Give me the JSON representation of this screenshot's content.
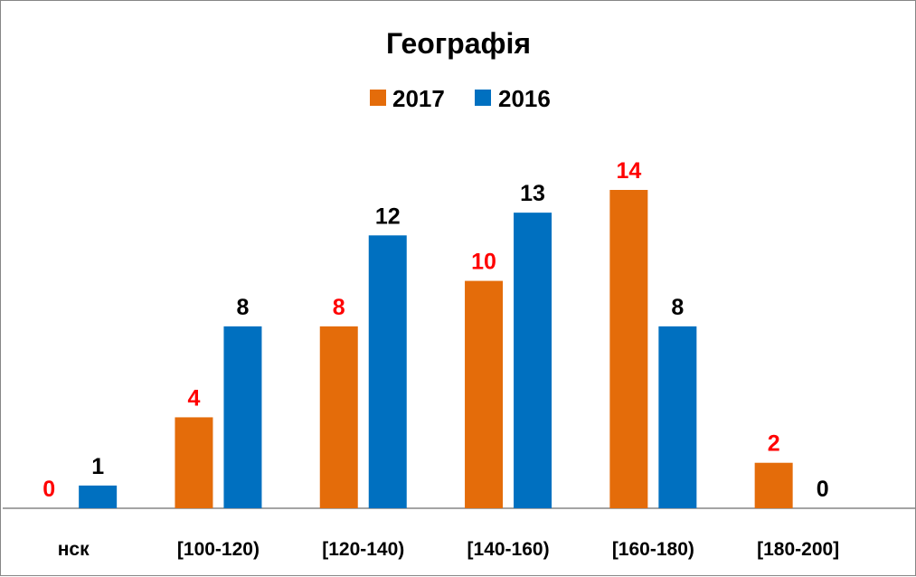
{
  "chart_data": {
    "type": "bar",
    "title": "Географія",
    "categories": [
      "нск",
      "[100-120)",
      "[120-140)",
      "[140-160)",
      "[160-180)",
      "[180-200]"
    ],
    "series": [
      {
        "name": "2017",
        "values": [
          0,
          4,
          8,
          10,
          14,
          2
        ],
        "color": "#E46C0A",
        "label_color": "#FF0000"
      },
      {
        "name": "2016",
        "values": [
          1,
          8,
          12,
          13,
          8,
          0
        ],
        "color": "#0070C0",
        "label_color": "#000000"
      }
    ],
    "ylim": [
      0,
      16
    ],
    "grid": false,
    "legend_position": "top"
  }
}
